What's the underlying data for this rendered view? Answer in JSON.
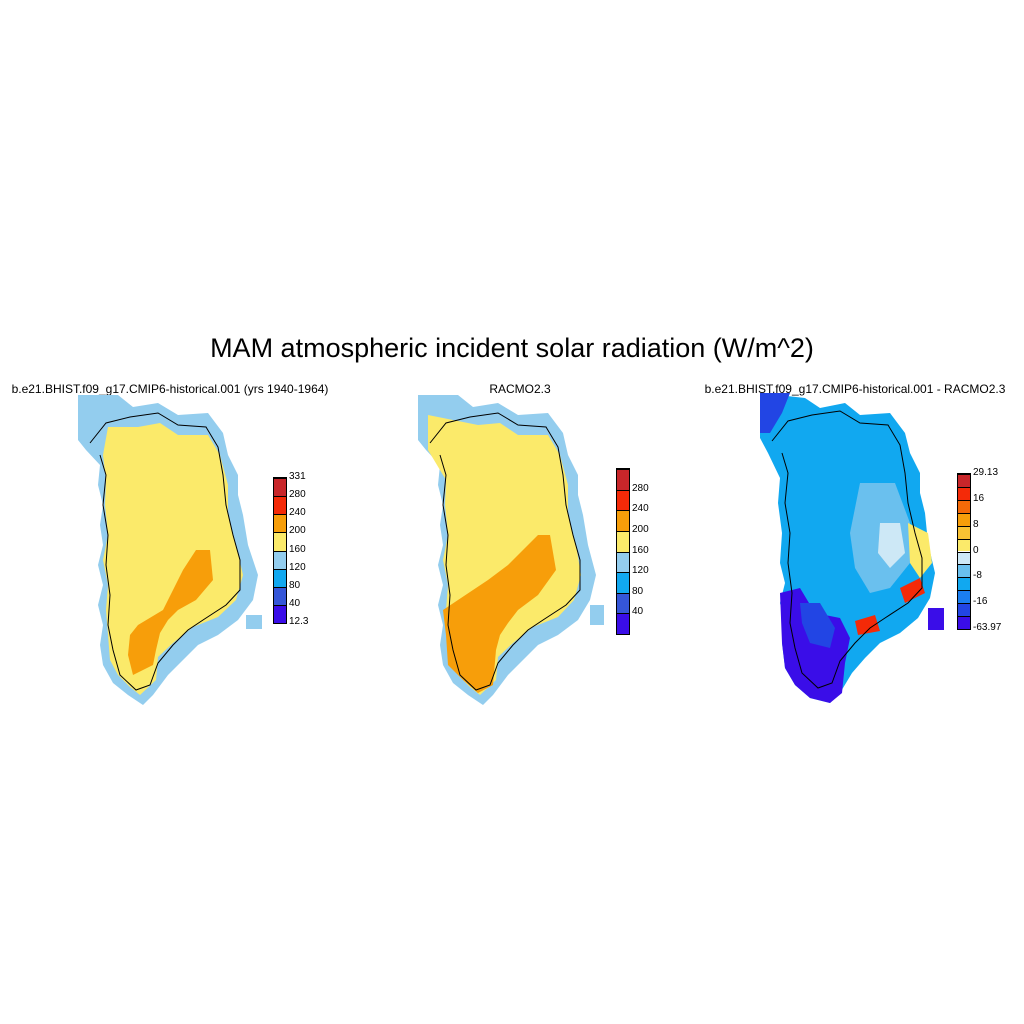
{
  "title": "MAM atmospheric incident solar radiation (W/m^2)",
  "panels": [
    {
      "id": "model",
      "title": "b.e21.BHIST.f09_g17.CMIP6-historical.001 (yrs 1940-1964)",
      "colorbar": {
        "colors": [
          "#3a0de8",
          "#3556d8",
          "#11a8f0",
          "#93cdee",
          "#fbea6a",
          "#f79e0a",
          "#f42a08",
          "#c8262a"
        ],
        "labels": [
          "12.3",
          "40",
          "80",
          "120",
          "160",
          "200",
          "240",
          "280",
          "331"
        ]
      }
    },
    {
      "id": "obs",
      "title": "RACMO2.3",
      "colorbar": {
        "colors": [
          "#3a0de8",
          "#3556d8",
          "#11a8f0",
          "#93cdee",
          "#fbea6a",
          "#f79e0a",
          "#f42a08",
          "#c8262a"
        ],
        "labels": [
          "",
          "40",
          "80",
          "120",
          "160",
          "200",
          "240",
          "280",
          ""
        ]
      }
    },
    {
      "id": "diff",
      "title": "b.e21.BHIST.f09_g17.CMIP6-historical.001 - RACMO2.3",
      "colorbar": {
        "colors": [
          "#3a0de8",
          "#2245e4",
          "#1b7ef0",
          "#11a8f0",
          "#6ac0ee",
          "#cde8f6",
          "#fbea6a",
          "#f9c233",
          "#f79e0a",
          "#f46a08",
          "#f42a08",
          "#c8262a"
        ],
        "labels": [
          "-63.97",
          "",
          "-16",
          "",
          "-8",
          "",
          "0",
          "",
          "8",
          "",
          "16",
          "",
          "29.13"
        ]
      }
    }
  ]
}
